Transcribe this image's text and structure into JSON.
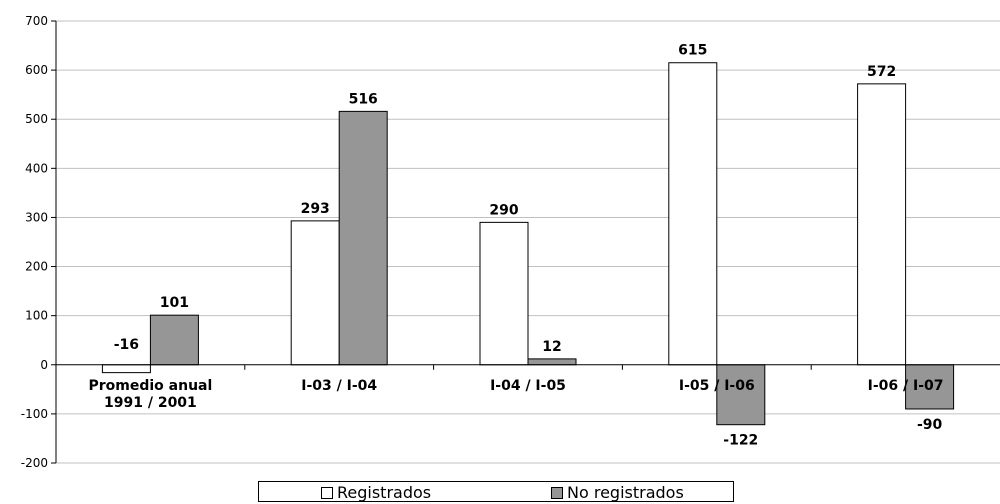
{
  "chart_data": {
    "type": "bar",
    "title": "",
    "xlabel": "",
    "ylabel": "",
    "ylim": [
      -200,
      700
    ],
    "yticks": [
      -200,
      -100,
      0,
      100,
      200,
      300,
      400,
      500,
      600,
      700
    ],
    "grid": true,
    "legend_position": "bottom",
    "categories": [
      [
        "Promedio anual",
        "1991 / 2001"
      ],
      [
        "I-03 / I-04"
      ],
      [
        "I-04 / I-05"
      ],
      [
        "I-05 / I-06"
      ],
      [
        "I-06 / I-07"
      ]
    ],
    "series": [
      {
        "name": "Registrados",
        "color": "#ffffff",
        "values": [
          -16,
          293,
          290,
          615,
          572
        ]
      },
      {
        "name": "No registrados",
        "color": "#969696",
        "values": [
          101,
          516,
          12,
          -122,
          -90
        ]
      }
    ]
  }
}
